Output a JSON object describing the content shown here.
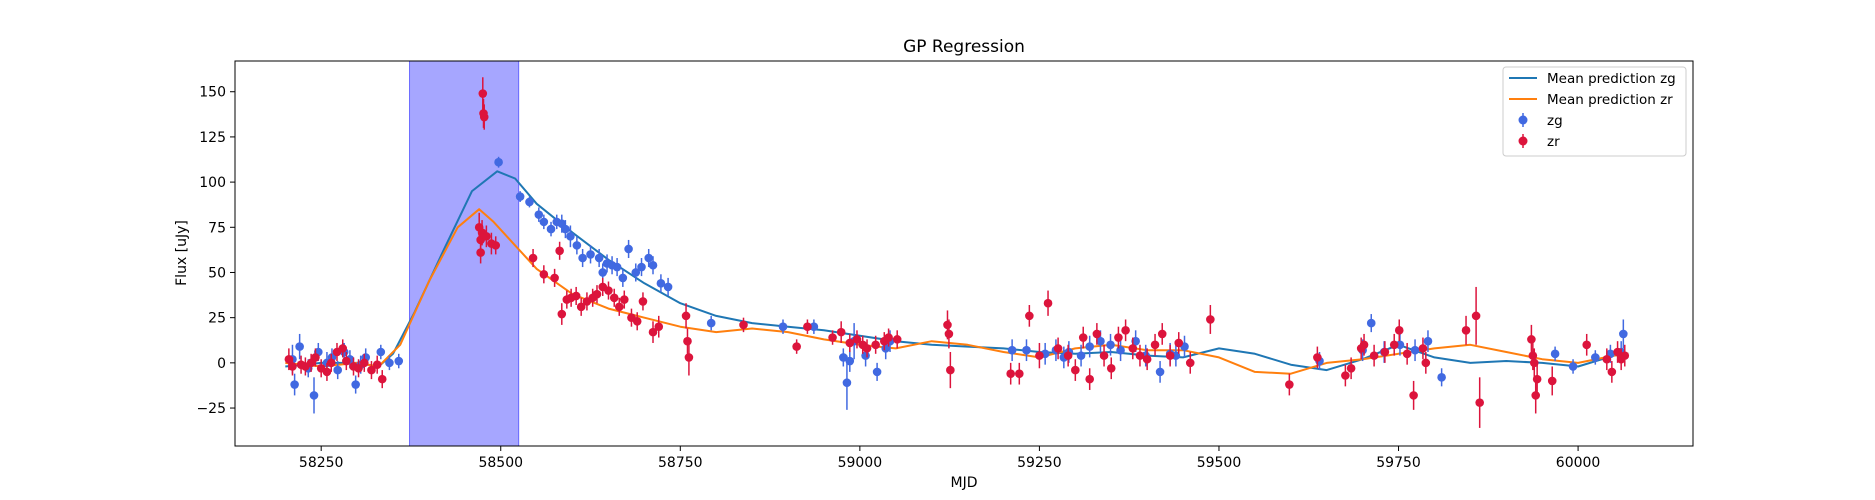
{
  "chart_data": {
    "type": "scatter",
    "title": "GP Regression",
    "xlabel": "MJD",
    "ylabel": "Flux [uJy]",
    "xlim": [
      58130,
      60160
    ],
    "ylim": [
      -46,
      167
    ],
    "xticks": [
      58250,
      58500,
      58750,
      59000,
      59250,
      59500,
      59750,
      60000
    ],
    "yticks": [
      -25,
      0,
      25,
      50,
      75,
      100,
      125,
      150
    ],
    "grid": false,
    "legend_position": "top-right",
    "shaded_region": {
      "x": [
        58373,
        58525
      ],
      "color": "#0000ff"
    },
    "colors": {
      "zg": "#4169e1",
      "zr": "#dc143c",
      "mean_zg": "#1f77b4",
      "mean_zr": "#ff7f0e"
    },
    "series": [
      {
        "name": "Mean prediction zg",
        "kind": "line",
        "x": [
          58200,
          58250,
          58300,
          58330,
          58350,
          58380,
          58420,
          58460,
          58495,
          58520,
          58550,
          58600,
          58650,
          58700,
          58750,
          58800,
          58850,
          58900,
          58950,
          59000,
          59050,
          59100,
          59150,
          59200,
          59250,
          59300,
          59350,
          59400,
          59450,
          59500,
          59550,
          59600,
          59650,
          59700,
          59750,
          59800,
          59850,
          59900,
          59950,
          60000,
          60050,
          60070
        ],
        "y": [
          -2,
          0,
          0,
          -2,
          5,
          28,
          62,
          95,
          106,
          102,
          88,
          72,
          57,
          44,
          33,
          26,
          22,
          20,
          18,
          15,
          12,
          10,
          9,
          8,
          6,
          5,
          6,
          4,
          3,
          8,
          5,
          -1,
          -4,
          2,
          10,
          3,
          0,
          1,
          0,
          -2,
          4,
          5
        ]
      },
      {
        "name": "Mean prediction zr",
        "kind": "line",
        "x": [
          58200,
          58250,
          58300,
          58330,
          58360,
          58400,
          58440,
          58470,
          58490,
          58520,
          58550,
          58600,
          58650,
          58700,
          58750,
          58800,
          58850,
          58900,
          58950,
          59000,
          59050,
          59100,
          59150,
          59200,
          59250,
          59300,
          59350,
          59400,
          59450,
          59500,
          59550,
          59600,
          59650,
          59700,
          59750,
          59800,
          59850,
          59900,
          59950,
          60000,
          60050,
          60070
        ],
        "y": [
          0,
          -2,
          0,
          -2,
          10,
          45,
          75,
          85,
          78,
          65,
          52,
          38,
          30,
          25,
          20,
          17,
          19,
          17,
          13,
          10,
          8,
          12,
          10,
          6,
          3,
          8,
          10,
          7,
          7,
          3,
          -5,
          -6,
          0,
          2,
          5,
          8,
          10,
          6,
          2,
          0,
          4,
          5
        ]
      },
      {
        "name": "zg",
        "kind": "errorbar",
        "x": [
          58210,
          58213,
          58220,
          58232,
          58240,
          58246,
          58258,
          58265,
          58273,
          58282,
          58290,
          58298,
          58305,
          58312,
          58333,
          58345,
          58358,
          58497,
          58527,
          58540,
          58553,
          58560,
          58570,
          58578,
          58585,
          58590,
          58597,
          58606,
          58614,
          58625,
          58637,
          58642,
          58648,
          58655,
          58662,
          58670,
          58678,
          58688,
          58696,
          58706,
          58712,
          58723,
          58733,
          58793,
          58893,
          58936,
          58977,
          58982,
          58986,
          58992,
          59008,
          59024,
          59036,
          59042,
          59212,
          59232,
          59258,
          59273,
          59284,
          59291,
          59308,
          59320,
          59335,
          59349,
          59363,
          59384,
          59398,
          59418,
          59432,
          59440,
          59452,
          59640,
          59700,
          59712,
          59730,
          59752,
          59773,
          59791,
          59810,
          59968,
          59993,
          60024,
          60045,
          60060,
          60063
        ],
        "y": [
          2,
          -12,
          9,
          -3,
          -18,
          6,
          0,
          3,
          -4,
          6,
          2,
          -12,
          -1,
          3,
          6,
          0,
          1,
          111,
          92,
          89,
          82,
          78,
          74,
          78,
          77,
          74,
          70,
          65,
          58,
          60,
          58,
          50,
          55,
          54,
          53,
          47,
          63,
          50,
          53,
          58,
          54,
          44,
          42,
          22,
          20,
          20,
          3,
          -11,
          1,
          12,
          4,
          -5,
          8,
          12,
          7,
          7,
          5,
          7,
          3,
          6,
          4,
          9,
          12,
          10,
          7,
          12,
          4,
          -5,
          5,
          4,
          9,
          1,
          7,
          22,
          6,
          10,
          7,
          12,
          -8,
          5,
          -2,
          3,
          5,
          6,
          16
        ],
        "err": [
          8,
          6,
          7,
          5,
          10,
          5,
          6,
          5,
          5,
          5,
          5,
          5,
          5,
          5,
          4,
          4,
          4,
          3,
          3,
          3,
          4,
          4,
          4,
          4,
          5,
          5,
          6,
          5,
          5,
          5,
          5,
          5,
          5,
          5,
          5,
          5,
          5,
          5,
          5,
          5,
          5,
          5,
          5,
          4,
          4,
          4,
          5,
          15,
          6,
          10,
          6,
          5,
          6,
          6,
          6,
          6,
          6,
          6,
          6,
          6,
          6,
          6,
          6,
          6,
          6,
          6,
          6,
          6,
          6,
          6,
          6,
          5,
          6,
          5,
          6,
          6,
          6,
          6,
          5,
          4,
          4,
          4,
          5,
          6,
          8
        ]
      },
      {
        "name": "zr",
        "kind": "errorbar",
        "x": [
          58205,
          58210,
          58222,
          58228,
          58236,
          58242,
          58250,
          58258,
          58264,
          58272,
          58280,
          58285,
          58295,
          58302,
          58310,
          58320,
          58328,
          58335,
          58475,
          58476,
          58477,
          58470,
          58472,
          58474,
          58480,
          58487,
          58493,
          58472,
          58545,
          58560,
          58575,
          58582,
          58585,
          58592,
          58598,
          58605,
          58612,
          58620,
          58628,
          58634,
          58642,
          58650,
          58658,
          58665,
          58672,
          58682,
          58690,
          58698,
          58712,
          58720,
          58758,
          58760,
          58762,
          58838,
          58912,
          58927,
          58962,
          58974,
          58986,
          58996,
          59004,
          59010,
          59022,
          59034,
          59040,
          59052,
          59122,
          59124,
          59126,
          59210,
          59222,
          59236,
          59250,
          59262,
          59276,
          59290,
          59300,
          59311,
          59320,
          59330,
          59340,
          59350,
          59360,
          59370,
          59380,
          59390,
          59400,
          59411,
          59421,
          59432,
          59444,
          59460,
          59488,
          59598,
          59637,
          59676,
          59684,
          59698,
          59702,
          59716,
          59731,
          59744,
          59751,
          59762,
          59771,
          59784,
          59788,
          59844,
          59858,
          59863,
          59935,
          59937,
          59939,
          59941,
          59943,
          59964,
          60012,
          60040,
          60047,
          60055,
          60060,
          60065
        ],
        "y": [
          2,
          -2,
          -1,
          -2,
          0,
          3,
          -3,
          -5,
          0,
          6,
          8,
          1,
          -2,
          -3,
          0,
          -4,
          -1,
          -9,
          149,
          138,
          136,
          75,
          68,
          72,
          70,
          66,
          65,
          61,
          58,
          49,
          47,
          62,
          27,
          35,
          36,
          37,
          31,
          34,
          36,
          38,
          42,
          40,
          36,
          31,
          35,
          25,
          23,
          34,
          17,
          20,
          26,
          12,
          3,
          21,
          9,
          20,
          14,
          17,
          11,
          13,
          10,
          8,
          10,
          12,
          14,
          13,
          21,
          16,
          -4,
          -6,
          -6,
          26,
          4,
          33,
          8,
          4,
          -4,
          14,
          -9,
          16,
          4,
          -3,
          14,
          18,
          8,
          4,
          2,
          10,
          16,
          4,
          11,
          0,
          24,
          -12,
          3,
          -7,
          -3,
          8,
          10,
          4,
          6,
          10,
          18,
          5,
          -18,
          8,
          0,
          18,
          26,
          -22,
          13,
          4,
          0,
          -18,
          -9,
          -10,
          10,
          2,
          -5,
          6,
          2,
          4
        ],
        "err": [
          6,
          5,
          5,
          5,
          5,
          5,
          5,
          5,
          5,
          5,
          5,
          5,
          5,
          5,
          5,
          5,
          5,
          5,
          9,
          8,
          7,
          8,
          7,
          7,
          6,
          6,
          5,
          6,
          5,
          5,
          5,
          5,
          6,
          5,
          5,
          5,
          5,
          5,
          5,
          5,
          5,
          5,
          5,
          5,
          5,
          5,
          5,
          5,
          6,
          6,
          7,
          7,
          10,
          4,
          4,
          4,
          4,
          6,
          5,
          5,
          5,
          5,
          5,
          5,
          5,
          5,
          8,
          8,
          10,
          6,
          6,
          6,
          7,
          7,
          6,
          6,
          6,
          6,
          6,
          6,
          6,
          6,
          6,
          6,
          6,
          6,
          6,
          6,
          6,
          6,
          6,
          6,
          8,
          6,
          6,
          6,
          6,
          6,
          6,
          6,
          6,
          6,
          6,
          6,
          8,
          6,
          6,
          8,
          16,
          14,
          8,
          8,
          8,
          10,
          8,
          8,
          6,
          6,
          6,
          6,
          6,
          6
        ]
      }
    ]
  }
}
